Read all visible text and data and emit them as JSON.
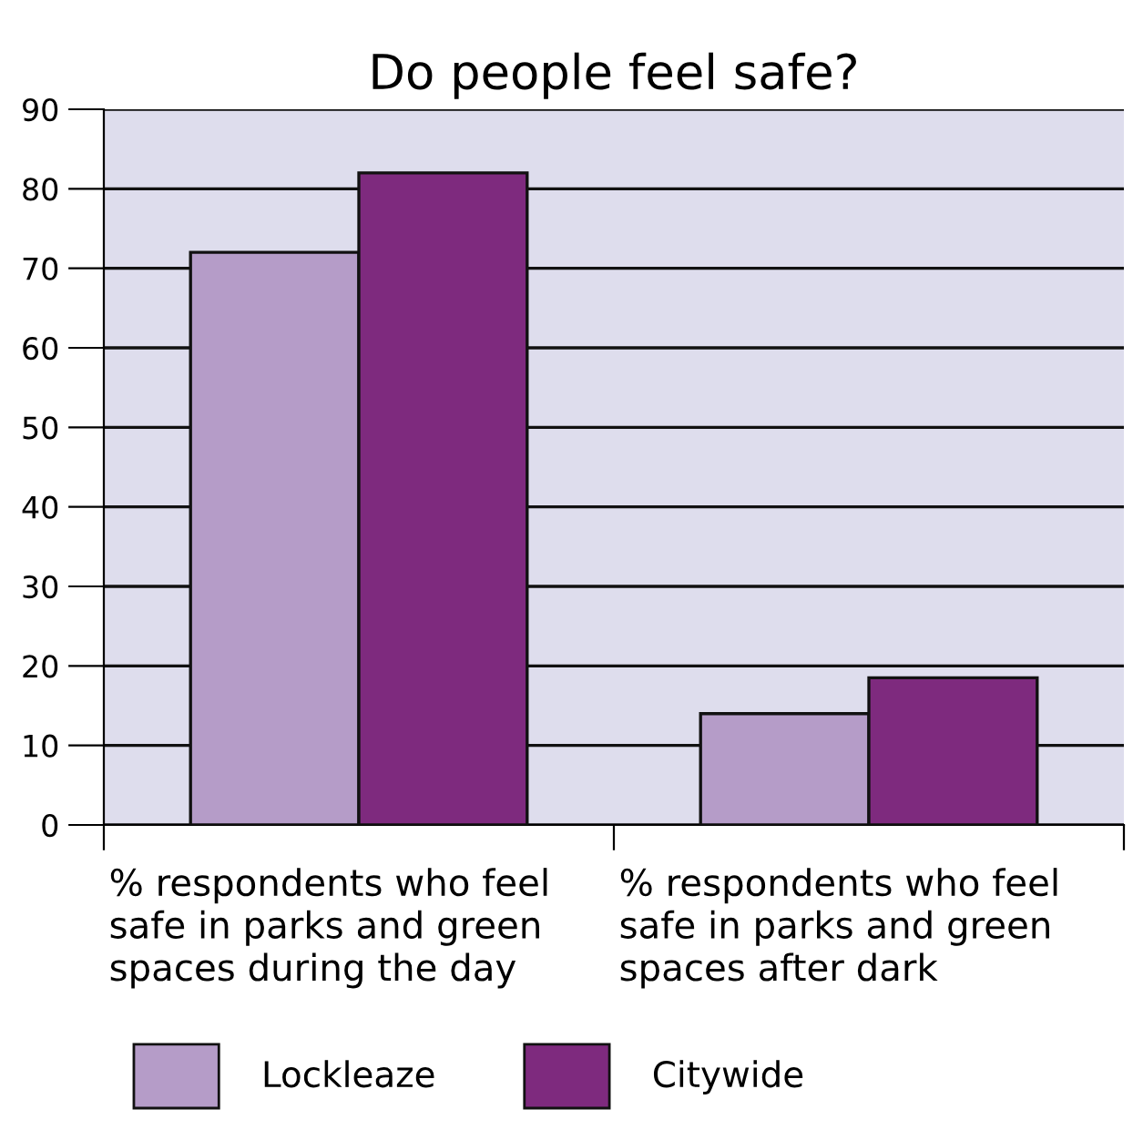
{
  "chart_data": {
    "type": "bar",
    "title": "Do people feel safe?",
    "categories": [
      "% respondents who feel\nsafe in parks and green\nspaces during the day",
      "% respondents who feel\nsafe in parks and green\nspaces after dark"
    ],
    "series": [
      {
        "name": "Lockleaze",
        "color": "#b59cc8",
        "values": [
          72,
          14
        ]
      },
      {
        "name": "Citywide",
        "color": "#7e2a7e",
        "values": [
          82,
          18.5
        ]
      }
    ],
    "ylim": [
      0,
      90
    ],
    "yticks": [
      0,
      10,
      20,
      30,
      40,
      50,
      60,
      70,
      80,
      90
    ],
    "grid": "y",
    "legend": "bottom"
  }
}
